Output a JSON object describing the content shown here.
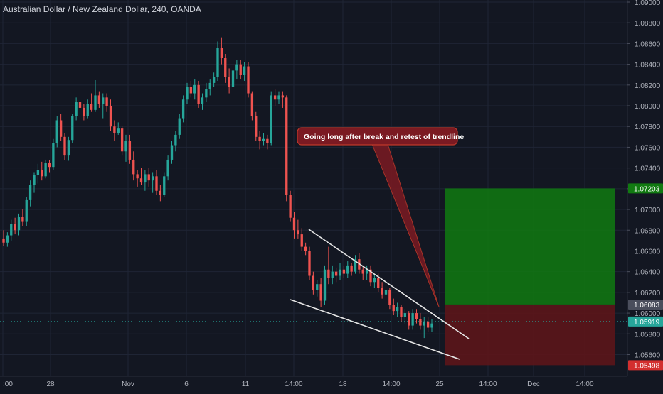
{
  "title": "Australian Dollar / New Zealand Dollar, 240, OANDA",
  "colors": {
    "background": "#131722",
    "grid": "#1f2535",
    "up": "#26a69a",
    "down": "#ef5350",
    "axis_text": "#b2b5be",
    "target_zone": "#117a11",
    "stop_zone": "#5c1519",
    "trendline": "#e6e6e6",
    "callout_fill": "#7b1a22",
    "callout_border": "#c0392b",
    "last_price_line": "#26a69a"
  },
  "annotation": {
    "text": "Going long after break and retest of trendline"
  },
  "chart_data": {
    "type": "candlestick",
    "title": "Australian Dollar / New Zealand Dollar, 240, OANDA",
    "ylim": [
      1.0548,
      1.09
    ],
    "y_ticks": [
      "1.09000",
      "1.08800",
      "1.08600",
      "1.08400",
      "1.08200",
      "1.08000",
      "1.07800",
      "1.07600",
      "1.07400",
      "1.07200",
      "1.07000",
      "1.06800",
      "1.06600",
      "1.06400",
      "1.06200",
      "1.06000",
      "1.05800",
      "1.05600"
    ],
    "x_ticks": [
      ":00",
      "28",
      "Nov",
      "6",
      "11",
      "14:00",
      "18",
      "14:00",
      "25",
      "14:00",
      "Dec",
      "14:00"
    ],
    "grid": true,
    "price_labels": [
      {
        "value": "1.07203",
        "price": 1.07203,
        "color": "#117a11"
      },
      {
        "value": "1.06083",
        "price": 1.06083,
        "color": "#4a4e5c"
      },
      {
        "value": "1.05919",
        "price": 1.05919,
        "color": "#26a69a"
      },
      {
        "value": "1.05498",
        "price": 1.05498,
        "color": "#d32f2f"
      }
    ],
    "position": {
      "side": "long",
      "entry": 1.06083,
      "target": 1.07203,
      "stop": 1.05498
    },
    "candles": [
      {
        "o": 1.0672,
        "h": 1.068,
        "l": 1.0665,
        "c": 1.0668
      },
      {
        "o": 1.0668,
        "h": 1.0678,
        "l": 1.0664,
        "c": 1.0675
      },
      {
        "o": 1.0675,
        "h": 1.069,
        "l": 1.067,
        "c": 1.0686
      },
      {
        "o": 1.0686,
        "h": 1.0692,
        "l": 1.0676,
        "c": 1.068
      },
      {
        "o": 1.068,
        "h": 1.0696,
        "l": 1.0675,
        "c": 1.0693
      },
      {
        "o": 1.0693,
        "h": 1.07,
        "l": 1.0684,
        "c": 1.0688
      },
      {
        "o": 1.0688,
        "h": 1.0712,
        "l": 1.0684,
        "c": 1.0709
      },
      {
        "o": 1.0709,
        "h": 1.0728,
        "l": 1.0703,
        "c": 1.0724
      },
      {
        "o": 1.0724,
        "h": 1.0736,
        "l": 1.0716,
        "c": 1.0733
      },
      {
        "o": 1.0733,
        "h": 1.0744,
        "l": 1.0725,
        "c": 1.0738
      },
      {
        "o": 1.0738,
        "h": 1.0746,
        "l": 1.0728,
        "c": 1.0732
      },
      {
        "o": 1.0732,
        "h": 1.0748,
        "l": 1.073,
        "c": 1.0745
      },
      {
        "o": 1.0745,
        "h": 1.0748,
        "l": 1.0736,
        "c": 1.0741
      },
      {
        "o": 1.0741,
        "h": 1.0768,
        "l": 1.0738,
        "c": 1.0764
      },
      {
        "o": 1.0764,
        "h": 1.079,
        "l": 1.076,
        "c": 1.0786
      },
      {
        "o": 1.0786,
        "h": 1.0792,
        "l": 1.0766,
        "c": 1.077
      },
      {
        "o": 1.077,
        "h": 1.0774,
        "l": 1.0748,
        "c": 1.0752
      },
      {
        "o": 1.0752,
        "h": 1.077,
        "l": 1.0747,
        "c": 1.0767
      },
      {
        "o": 1.0767,
        "h": 1.0792,
        "l": 1.0764,
        "c": 1.079
      },
      {
        "o": 1.079,
        "h": 1.0808,
        "l": 1.0786,
        "c": 1.0804
      },
      {
        "o": 1.0804,
        "h": 1.0814,
        "l": 1.0794,
        "c": 1.0798
      },
      {
        "o": 1.0798,
        "h": 1.0802,
        "l": 1.0786,
        "c": 1.079
      },
      {
        "o": 1.079,
        "h": 1.0806,
        "l": 1.0788,
        "c": 1.0802
      },
      {
        "o": 1.0802,
        "h": 1.0812,
        "l": 1.0794,
        "c": 1.0796
      },
      {
        "o": 1.0796,
        "h": 1.0825,
        "l": 1.0794,
        "c": 1.081
      },
      {
        "o": 1.081,
        "h": 1.0814,
        "l": 1.0798,
        "c": 1.0802
      },
      {
        "o": 1.0802,
        "h": 1.0812,
        "l": 1.0788,
        "c": 1.0808
      },
      {
        "o": 1.0808,
        "h": 1.0812,
        "l": 1.0794,
        "c": 1.08
      },
      {
        "o": 1.08,
        "h": 1.0806,
        "l": 1.0776,
        "c": 1.078
      },
      {
        "o": 1.078,
        "h": 1.0786,
        "l": 1.0766,
        "c": 1.0774
      },
      {
        "o": 1.0774,
        "h": 1.0784,
        "l": 1.0772,
        "c": 1.0778
      },
      {
        "o": 1.0778,
        "h": 1.078,
        "l": 1.0752,
        "c": 1.0756
      },
      {
        "o": 1.0756,
        "h": 1.0772,
        "l": 1.0746,
        "c": 1.0766
      },
      {
        "o": 1.0766,
        "h": 1.0772,
        "l": 1.0744,
        "c": 1.0748
      },
      {
        "o": 1.0748,
        "h": 1.0756,
        "l": 1.0728,
        "c": 1.0734
      },
      {
        "o": 1.0734,
        "h": 1.0738,
        "l": 1.0722,
        "c": 1.073
      },
      {
        "o": 1.073,
        "h": 1.074,
        "l": 1.0724,
        "c": 1.0726
      },
      {
        "o": 1.0726,
        "h": 1.0738,
        "l": 1.0718,
        "c": 1.0734
      },
      {
        "o": 1.0734,
        "h": 1.074,
        "l": 1.0722,
        "c": 1.0728
      },
      {
        "o": 1.0728,
        "h": 1.0736,
        "l": 1.0716,
        "c": 1.0732
      },
      {
        "o": 1.0732,
        "h": 1.0738,
        "l": 1.0714,
        "c": 1.0718
      },
      {
        "o": 1.0718,
        "h": 1.0724,
        "l": 1.0708,
        "c": 1.0714
      },
      {
        "o": 1.0714,
        "h": 1.0736,
        "l": 1.0712,
        "c": 1.0732
      },
      {
        "o": 1.0732,
        "h": 1.0752,
        "l": 1.0728,
        "c": 1.0748
      },
      {
        "o": 1.0748,
        "h": 1.0766,
        "l": 1.0744,
        "c": 1.0762
      },
      {
        "o": 1.0762,
        "h": 1.0776,
        "l": 1.0756,
        "c": 1.0772
      },
      {
        "o": 1.0772,
        "h": 1.0792,
        "l": 1.0768,
        "c": 1.0788
      },
      {
        "o": 1.0788,
        "h": 1.081,
        "l": 1.0784,
        "c": 1.0806
      },
      {
        "o": 1.0806,
        "h": 1.0822,
        "l": 1.0802,
        "c": 1.0818
      },
      {
        "o": 1.0818,
        "h": 1.0824,
        "l": 1.0808,
        "c": 1.0812
      },
      {
        "o": 1.0812,
        "h": 1.0826,
        "l": 1.0806,
        "c": 1.082
      },
      {
        "o": 1.082,
        "h": 1.0824,
        "l": 1.0798,
        "c": 1.0802
      },
      {
        "o": 1.0802,
        "h": 1.0812,
        "l": 1.0796,
        "c": 1.0808
      },
      {
        "o": 1.0808,
        "h": 1.0822,
        "l": 1.0804,
        "c": 1.0816
      },
      {
        "o": 1.0816,
        "h": 1.0826,
        "l": 1.081,
        "c": 1.0822
      },
      {
        "o": 1.0822,
        "h": 1.0832,
        "l": 1.0818,
        "c": 1.0828
      },
      {
        "o": 1.0828,
        "h": 1.0862,
        "l": 1.0824,
        "c": 1.0856
      },
      {
        "o": 1.0856,
        "h": 1.0866,
        "l": 1.084,
        "c": 1.0846
      },
      {
        "o": 1.0846,
        "h": 1.085,
        "l": 1.0822,
        "c": 1.0828
      },
      {
        "o": 1.0828,
        "h": 1.0836,
        "l": 1.0812,
        "c": 1.0818
      },
      {
        "o": 1.0818,
        "h": 1.0838,
        "l": 1.0814,
        "c": 1.0834
      },
      {
        "o": 1.0834,
        "h": 1.0844,
        "l": 1.0826,
        "c": 1.084
      },
      {
        "o": 1.084,
        "h": 1.0844,
        "l": 1.0826,
        "c": 1.083
      },
      {
        "o": 1.083,
        "h": 1.0842,
        "l": 1.0824,
        "c": 1.0838
      },
      {
        "o": 1.0838,
        "h": 1.0842,
        "l": 1.0808,
        "c": 1.0812
      },
      {
        "o": 1.0812,
        "h": 1.0814,
        "l": 1.0786,
        "c": 1.079
      },
      {
        "o": 1.079,
        "h": 1.0794,
        "l": 1.0766,
        "c": 1.077
      },
      {
        "o": 1.077,
        "h": 1.0776,
        "l": 1.0758,
        "c": 1.0766
      },
      {
        "o": 1.0766,
        "h": 1.0774,
        "l": 1.0762,
        "c": 1.0768
      },
      {
        "o": 1.0768,
        "h": 1.0772,
        "l": 1.0758,
        "c": 1.0764
      },
      {
        "o": 1.0764,
        "h": 1.0814,
        "l": 1.0762,
        "c": 1.081
      },
      {
        "o": 1.081,
        "h": 1.0816,
        "l": 1.08,
        "c": 1.0806
      },
      {
        "o": 1.0806,
        "h": 1.0814,
        "l": 1.0802,
        "c": 1.081
      },
      {
        "o": 1.081,
        "h": 1.0814,
        "l": 1.0798,
        "c": 1.0808
      },
      {
        "o": 1.0808,
        "h": 1.081,
        "l": 1.0708,
        "c": 1.0714
      },
      {
        "o": 1.0714,
        "h": 1.0718,
        "l": 1.0688,
        "c": 1.0692
      },
      {
        "o": 1.0692,
        "h": 1.0698,
        "l": 1.0672,
        "c": 1.068
      },
      {
        "o": 1.068,
        "h": 1.069,
        "l": 1.0672,
        "c": 1.0676
      },
      {
        "o": 1.0676,
        "h": 1.0682,
        "l": 1.066,
        "c": 1.0664
      },
      {
        "o": 1.0664,
        "h": 1.0668,
        "l": 1.0656,
        "c": 1.066
      },
      {
        "o": 1.066,
        "h": 1.0664,
        "l": 1.0632,
        "c": 1.0636
      },
      {
        "o": 1.0636,
        "h": 1.064,
        "l": 1.0618,
        "c": 1.0622
      },
      {
        "o": 1.0622,
        "h": 1.0632,
        "l": 1.0616,
        "c": 1.0628
      },
      {
        "o": 1.0628,
        "h": 1.0634,
        "l": 1.0606,
        "c": 1.0612
      },
      {
        "o": 1.0612,
        "h": 1.0646,
        "l": 1.0608,
        "c": 1.0642
      },
      {
        "o": 1.0642,
        "h": 1.0664,
        "l": 1.0628,
        "c": 1.0634
      },
      {
        "o": 1.0634,
        "h": 1.0646,
        "l": 1.0628,
        "c": 1.064
      },
      {
        "o": 1.064,
        "h": 1.0644,
        "l": 1.063,
        "c": 1.0636
      },
      {
        "o": 1.0636,
        "h": 1.0648,
        "l": 1.0632,
        "c": 1.0642
      },
      {
        "o": 1.0642,
        "h": 1.0646,
        "l": 1.0634,
        "c": 1.0638
      },
      {
        "o": 1.0638,
        "h": 1.065,
        "l": 1.0634,
        "c": 1.0646
      },
      {
        "o": 1.0646,
        "h": 1.0648,
        "l": 1.0636,
        "c": 1.064
      },
      {
        "o": 1.064,
        "h": 1.0656,
        "l": 1.0638,
        "c": 1.0652
      },
      {
        "o": 1.0652,
        "h": 1.0658,
        "l": 1.0638,
        "c": 1.0642
      },
      {
        "o": 1.0642,
        "h": 1.0646,
        "l": 1.0632,
        "c": 1.0638
      },
      {
        "o": 1.0638,
        "h": 1.0646,
        "l": 1.0632,
        "c": 1.0642
      },
      {
        "o": 1.0642,
        "h": 1.0646,
        "l": 1.0626,
        "c": 1.063
      },
      {
        "o": 1.063,
        "h": 1.0638,
        "l": 1.0624,
        "c": 1.0634
      },
      {
        "o": 1.0634,
        "h": 1.0638,
        "l": 1.062,
        "c": 1.0624
      },
      {
        "o": 1.0624,
        "h": 1.063,
        "l": 1.0614,
        "c": 1.0618
      },
      {
        "o": 1.0618,
        "h": 1.0626,
        "l": 1.0612,
        "c": 1.0622
      },
      {
        "o": 1.0622,
        "h": 1.0624,
        "l": 1.0604,
        "c": 1.0608
      },
      {
        "o": 1.0608,
        "h": 1.0614,
        "l": 1.0598,
        "c": 1.0602
      },
      {
        "o": 1.0602,
        "h": 1.061,
        "l": 1.0596,
        "c": 1.0606
      },
      {
        "o": 1.0606,
        "h": 1.0608,
        "l": 1.0592,
        "c": 1.0596
      },
      {
        "o": 1.0596,
        "h": 1.0604,
        "l": 1.059,
        "c": 1.06
      },
      {
        "o": 1.06,
        "h": 1.0602,
        "l": 1.0584,
        "c": 1.0588
      },
      {
        "o": 1.0588,
        "h": 1.0604,
        "l": 1.0584,
        "c": 1.06
      },
      {
        "o": 1.06,
        "h": 1.0604,
        "l": 1.059,
        "c": 1.0594
      },
      {
        "o": 1.0594,
        "h": 1.06,
        "l": 1.0584,
        "c": 1.0588
      },
      {
        "o": 1.0588,
        "h": 1.0596,
        "l": 1.0576,
        "c": 1.0592
      },
      {
        "o": 1.0592,
        "h": 1.0596,
        "l": 1.0582,
        "c": 1.0586
      },
      {
        "o": 1.0586,
        "h": 1.0594,
        "l": 1.0582,
        "c": 1.059
      }
    ]
  }
}
